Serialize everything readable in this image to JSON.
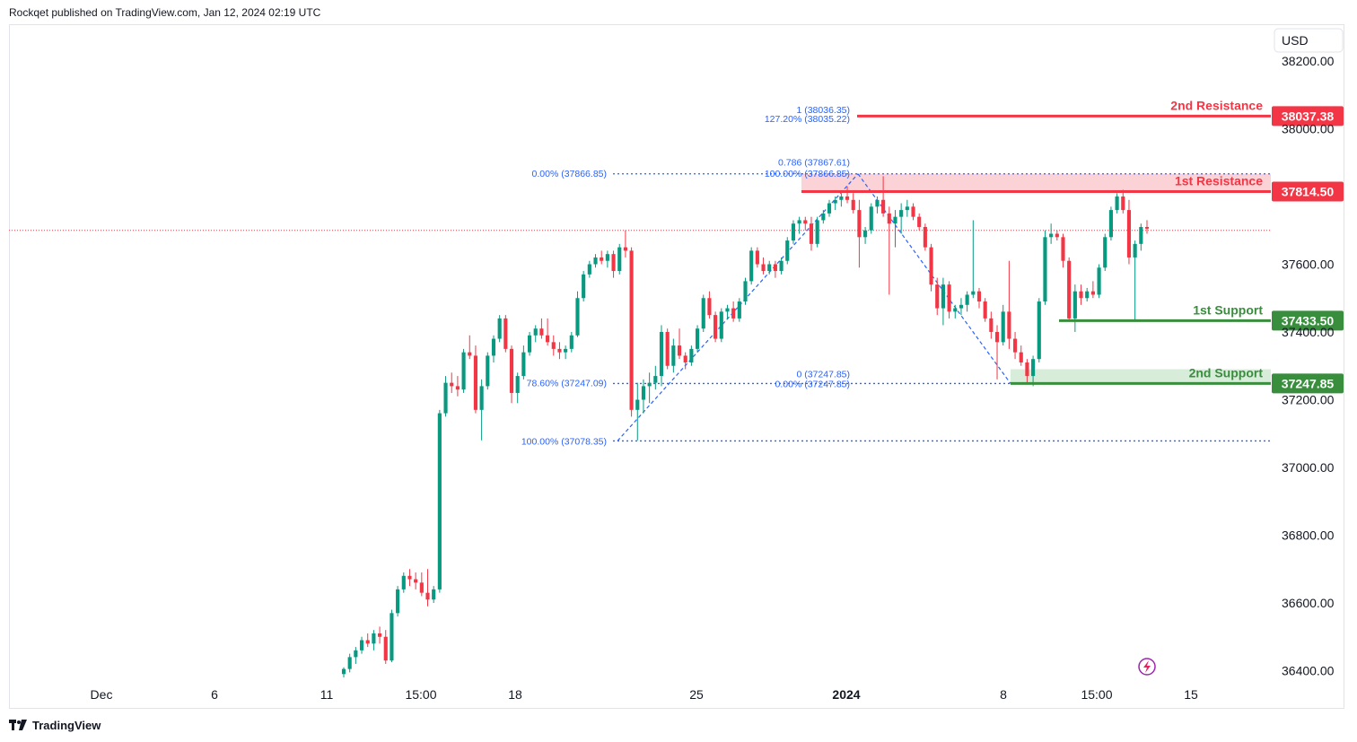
{
  "header": {
    "published": "Rockqet published on TradingView.com, Jan 12, 2024 02:19 UTC"
  },
  "footer": {
    "brand": "TradingView"
  },
  "currency": "USD",
  "colors": {
    "up": "#089981",
    "down": "#f23645",
    "fib": "#2962ff",
    "resistance": "#f23645",
    "support": "#388e3c",
    "resistance_zone": "#fbd2d5",
    "support_zone": "#d7ecd9"
  },
  "levels": [
    {
      "name": "2nd Resistance",
      "value": "38037.38",
      "price": 38037.38,
      "kind": "resistance"
    },
    {
      "name": "1st Resistance",
      "value": "37814.50",
      "price": 37814.5,
      "kind": "resistance"
    },
    {
      "name": "1st Support",
      "value": "37433.50",
      "price": 37433.5,
      "kind": "support"
    },
    {
      "name": "2nd Support",
      "value": "37247.85",
      "price": 37247.85,
      "kind": "support"
    }
  ],
  "fib_labels": [
    {
      "text": "1 (38036.35)",
      "price": 38036.35
    },
    {
      "text": "127.20% (38035.22)",
      "price": 38035.22
    },
    {
      "text": "0.786 (37867.61)",
      "price": 37867.61
    },
    {
      "text": "100.00% (37866.85)",
      "price": 37866.85
    },
    {
      "text": "0.00% (37866.85)",
      "price": 37866.85
    },
    {
      "text": "78.60% (37247.09)",
      "price": 37247.09
    },
    {
      "text": "0 (37247.85)",
      "price": 37247.85
    },
    {
      "text": "0.00% (37247.85)",
      "price": 37247.85
    },
    {
      "text": "100.00% (37078.35)",
      "price": 37078.35
    }
  ],
  "chart_data": {
    "type": "candlestick",
    "ylim": [
      36330,
      38290
    ],
    "y_ticks": [
      "38200.00",
      "38000.00",
      "37600.00",
      "37400.00",
      "37200.00",
      "37000.00",
      "36800.00",
      "36600.00",
      "36400.00"
    ],
    "y_tick_values": [
      38200,
      38000,
      37600,
      37400,
      37200,
      37000,
      36800,
      36600,
      36400
    ],
    "x_ticks": [
      "Dec",
      "6",
      "11",
      "15:00",
      "18",
      "25",
      "2024",
      "8",
      "15:00",
      "15"
    ],
    "grid": false,
    "current_price_line": 37700,
    "candles": [
      [
        36390,
        36410,
        36380,
        36405
      ],
      [
        36405,
        36450,
        36395,
        36440
      ],
      [
        36440,
        36470,
        36420,
        36460
      ],
      [
        36460,
        36500,
        36450,
        36490
      ],
      [
        36490,
        36510,
        36470,
        36480
      ],
      [
        36480,
        36520,
        36460,
        36510
      ],
      [
        36510,
        36530,
        36480,
        36500
      ],
      [
        36500,
        36520,
        36420,
        36430
      ],
      [
        36430,
        36580,
        36425,
        36570
      ],
      [
        36570,
        36650,
        36560,
        36640
      ],
      [
        36640,
        36690,
        36630,
        36680
      ],
      [
        36680,
        36700,
        36650,
        36670
      ],
      [
        36670,
        36690,
        36640,
        36660
      ],
      [
        36660,
        36690,
        36620,
        36630
      ],
      [
        36630,
        36700,
        36590,
        36610
      ],
      [
        36610,
        36650,
        36600,
        36640
      ],
      [
        36640,
        37170,
        36630,
        37160
      ],
      [
        37160,
        37270,
        37150,
        37250
      ],
      [
        37250,
        37280,
        37220,
        37240
      ],
      [
        37240,
        37270,
        37210,
        37230
      ],
      [
        37230,
        37350,
        37220,
        37340
      ],
      [
        37340,
        37390,
        37320,
        37330
      ],
      [
        37330,
        37360,
        37160,
        37170
      ],
      [
        37170,
        37260,
        37080,
        37240
      ],
      [
        37240,
        37340,
        37230,
        37330
      ],
      [
        37330,
        37390,
        37310,
        37380
      ],
      [
        37380,
        37450,
        37370,
        37440
      ],
      [
        37440,
        37450,
        37340,
        37350
      ],
      [
        37350,
        37360,
        37190,
        37220
      ],
      [
        37220,
        37280,
        37190,
        37270
      ],
      [
        37270,
        37360,
        37260,
        37340
      ],
      [
        37340,
        37400,
        37330,
        37390
      ],
      [
        37390,
        37420,
        37370,
        37410
      ],
      [
        37410,
        37440,
        37380,
        37390
      ],
      [
        37390,
        37440,
        37360,
        37370
      ],
      [
        37370,
        37390,
        37330,
        37350
      ],
      [
        37350,
        37370,
        37320,
        37340
      ],
      [
        37340,
        37360,
        37320,
        37350
      ],
      [
        37350,
        37400,
        37340,
        37390
      ],
      [
        37390,
        37520,
        37385,
        37500
      ],
      [
        37500,
        37580,
        37490,
        37570
      ],
      [
        37570,
        37610,
        37560,
        37600
      ],
      [
        37600,
        37630,
        37590,
        37620
      ],
      [
        37620,
        37640,
        37600,
        37610
      ],
      [
        37610,
        37640,
        37590,
        37630
      ],
      [
        37630,
        37640,
        37560,
        37580
      ],
      [
        37580,
        37660,
        37570,
        37650
      ],
      [
        37650,
        37700,
        37620,
        37640
      ],
      [
        37640,
        37650,
        37150,
        37170
      ],
      [
        37170,
        37250,
        37080,
        37200
      ],
      [
        37200,
        37260,
        37160,
        37240
      ],
      [
        37240,
        37280,
        37190,
        37250
      ],
      [
        37250,
        37300,
        37230,
        37270
      ],
      [
        37270,
        37420,
        37240,
        37400
      ],
      [
        37400,
        37410,
        37290,
        37300
      ],
      [
        37300,
        37380,
        37280,
        37360
      ],
      [
        37360,
        37410,
        37320,
        37330
      ],
      [
        37330,
        37340,
        37290,
        37310
      ],
      [
        37310,
        37360,
        37300,
        37350
      ],
      [
        37350,
        37420,
        37340,
        37410
      ],
      [
        37410,
        37510,
        37400,
        37500
      ],
      [
        37500,
        37520,
        37440,
        37450
      ],
      [
        37450,
        37460,
        37370,
        37380
      ],
      [
        37380,
        37470,
        37370,
        37460
      ],
      [
        37460,
        37480,
        37440,
        37470
      ],
      [
        37470,
        37490,
        37430,
        37440
      ],
      [
        37440,
        37500,
        37430,
        37490
      ],
      [
        37490,
        37560,
        37480,
        37550
      ],
      [
        37550,
        37650,
        37540,
        37640
      ],
      [
        37640,
        37650,
        37590,
        37600
      ],
      [
        37600,
        37620,
        37570,
        37580
      ],
      [
        37580,
        37610,
        37570,
        37600
      ],
      [
        37600,
        37610,
        37560,
        37580
      ],
      [
        37580,
        37620,
        37570,
        37610
      ],
      [
        37610,
        37680,
        37600,
        37670
      ],
      [
        37670,
        37730,
        37660,
        37720
      ],
      [
        37720,
        37740,
        37690,
        37730
      ],
      [
        37730,
        37740,
        37700,
        37720
      ],
      [
        37720,
        37740,
        37640,
        37660
      ],
      [
        37660,
        37740,
        37650,
        37730
      ],
      [
        37730,
        37760,
        37720,
        37750
      ],
      [
        37750,
        37790,
        37740,
        37780
      ],
      [
        37780,
        37800,
        37760,
        37790
      ],
      [
        37790,
        37810,
        37770,
        37800
      ],
      [
        37800,
        37830,
        37780,
        37790
      ],
      [
        37790,
        37810,
        37750,
        37760
      ],
      [
        37760,
        37790,
        37590,
        37680
      ],
      [
        37680,
        37710,
        37660,
        37700
      ],
      [
        37700,
        37780,
        37690,
        37770
      ],
      [
        37770,
        37800,
        37750,
        37790
      ],
      [
        37790,
        37860,
        37740,
        37750
      ],
      [
        37750,
        37770,
        37510,
        37720
      ],
      [
        37720,
        37760,
        37650,
        37740
      ],
      [
        37740,
        37780,
        37690,
        37760
      ],
      [
        37760,
        37790,
        37740,
        37770
      ],
      [
        37770,
        37780,
        37730,
        37740
      ],
      [
        37740,
        37750,
        37700,
        37710
      ],
      [
        37710,
        37720,
        37640,
        37650
      ],
      [
        37650,
        37660,
        37520,
        37540
      ],
      [
        37540,
        37560,
        37450,
        37470
      ],
      [
        37470,
        37560,
        37420,
        37540
      ],
      [
        37540,
        37550,
        37440,
        37460
      ],
      [
        37460,
        37480,
        37440,
        37470
      ],
      [
        37470,
        37500,
        37450,
        37480
      ],
      [
        37480,
        37520,
        37460,
        37510
      ],
      [
        37510,
        37730,
        37500,
        37520
      ],
      [
        37520,
        37530,
        37470,
        37490
      ],
      [
        37490,
        37500,
        37430,
        37440
      ],
      [
        37440,
        37460,
        37380,
        37400
      ],
      [
        37400,
        37420,
        37260,
        37370
      ],
      [
        37370,
        37480,
        37360,
        37460
      ],
      [
        37460,
        37610,
        37350,
        37380
      ],
      [
        37380,
        37400,
        37320,
        37340
      ],
      [
        37340,
        37360,
        37300,
        37310
      ],
      [
        37310,
        37320,
        37250,
        37270
      ],
      [
        37270,
        37330,
        37240,
        37320
      ],
      [
        37320,
        37500,
        37310,
        37490
      ],
      [
        37490,
        37700,
        37480,
        37680
      ],
      [
        37680,
        37720,
        37660,
        37690
      ],
      [
        37690,
        37700,
        37670,
        37680
      ],
      [
        37680,
        37690,
        37590,
        37610
      ],
      [
        37610,
        37620,
        37430,
        37440
      ],
      [
        37440,
        37540,
        37400,
        37520
      ],
      [
        37520,
        37540,
        37480,
        37500
      ],
      [
        37500,
        37530,
        37490,
        37520
      ],
      [
        37520,
        37550,
        37500,
        37510
      ],
      [
        37510,
        37600,
        37500,
        37590
      ],
      [
        37590,
        37690,
        37580,
        37680
      ],
      [
        37680,
        37770,
        37670,
        37760
      ],
      [
        37760,
        37810,
        37750,
        37800
      ],
      [
        37800,
        37820,
        37750,
        37760
      ],
      [
        37760,
        37790,
        37600,
        37620
      ],
      [
        37620,
        37670,
        37430,
        37660
      ],
      [
        37660,
        37720,
        37640,
        37710
      ],
      [
        37710,
        37730,
        37690,
        37705
      ]
    ]
  }
}
